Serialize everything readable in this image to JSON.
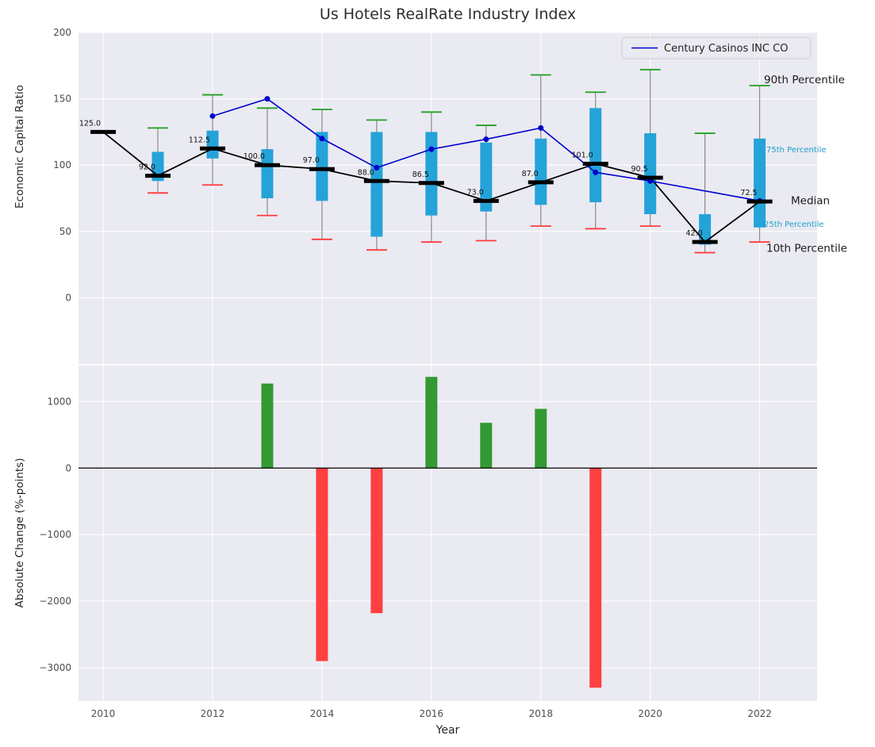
{
  "chart_data": {
    "type": [
      "boxplot",
      "line",
      "bar"
    ],
    "title": "Us Hotels RealRate Industry Index",
    "xlabel": "Year",
    "x_tick_years": [
      2010,
      2012,
      2014,
      2016,
      2018,
      2020,
      2022
    ],
    "x_range": [
      2009.55,
      2023.05
    ],
    "colors": {
      "axes_bg": "#eaeaf2",
      "grid": "#ffffff",
      "box": "#24a3d9",
      "whisker": "#8a8a8a",
      "cap_top": "#22a022",
      "cap_bottom": "#ff3b3b",
      "median": "#000000",
      "company_line": "#0000cd",
      "bar_positive": "#339933",
      "bar_negative": "#ff4040",
      "percentile_cyan": "#1d9ecb",
      "annotation_black": "#1a1a1a"
    },
    "top_panel": {
      "ylabel": "Economic Capital Ratio",
      "ylim": [
        -50,
        200
      ],
      "yticks": [
        0,
        50,
        100,
        150,
        200
      ],
      "grid": true,
      "legend_label": "Century Casinos INC CO",
      "legend_position": "upper right",
      "boxes": [
        {
          "year": 2010,
          "median": 125.0
        },
        {
          "year": 2011,
          "p10": 79,
          "p25": 88,
          "median": 92.0,
          "p75": 110,
          "p90": 128
        },
        {
          "year": 2012,
          "p10": 85,
          "p25": 105,
          "median": 112.5,
          "p75": 126,
          "p90": 153
        },
        {
          "year": 2013,
          "p10": 62,
          "p25": 75,
          "median": 100.0,
          "p75": 112,
          "p90": 143
        },
        {
          "year": 2014,
          "p10": 44,
          "p25": 73,
          "median": 97.0,
          "p75": 125,
          "p90": 142
        },
        {
          "year": 2015,
          "p10": 36,
          "p25": 46,
          "median": 88.0,
          "p75": 125,
          "p90": 134
        },
        {
          "year": 2016,
          "p10": 42,
          "p25": 62,
          "median": 86.5,
          "p75": 125,
          "p90": 140
        },
        {
          "year": 2017,
          "p10": 43,
          "p25": 65,
          "median": 73.0,
          "p75": 117,
          "p90": 130
        },
        {
          "year": 2018,
          "p10": 54,
          "p25": 70,
          "median": 87.0,
          "p75": 120,
          "p90": 168
        },
        {
          "year": 2019,
          "p10": 52,
          "p25": 72,
          "median": 101.0,
          "p75": 143,
          "p90": 155
        },
        {
          "year": 2020,
          "p10": 54,
          "p25": 63,
          "median": 90.5,
          "p75": 124,
          "p90": 172
        },
        {
          "year": 2021,
          "p10": 34,
          "p25": 40,
          "median": 42.0,
          "p75": 63,
          "p90": 124
        },
        {
          "year": 2022,
          "p10": 42,
          "p25": 53,
          "median": 72.5,
          "p75": 120,
          "p90": 160
        }
      ],
      "company": {
        "name": "Century Casinos INC CO",
        "points": [
          {
            "year": 2012,
            "value": 137.0
          },
          {
            "year": 2013,
            "value": 150.0
          },
          {
            "year": 2014,
            "value": 120.0
          },
          {
            "year": 2015,
            "value": 98.0
          },
          {
            "year": 2016,
            "value": 112.0
          },
          {
            "year": 2017,
            "value": 119.5
          },
          {
            "year": 2018,
            "value": 128.0
          },
          {
            "year": 2019,
            "value": 94.5
          },
          {
            "year": 2020,
            "value": 88.0
          },
          {
            "year": 2022,
            "value": 73.0
          }
        ]
      },
      "annotations": [
        {
          "id": "90th-percentile",
          "text": "90th Percentile",
          "value": 164,
          "x": 963,
          "size": 13.5,
          "color": "#1a1a1a"
        },
        {
          "id": "75th-percentile",
          "text": "75th Percentile",
          "value": 112,
          "x": 966,
          "size": 10,
          "color": "#1d9ecb"
        },
        {
          "id": "median",
          "text": "Median",
          "value": 73,
          "x": 997,
          "size": 13.5,
          "color": "#1a1a1a"
        },
        {
          "id": "25th-percentile",
          "text": "25th Percentile",
          "value": 56,
          "x": 963,
          "size": 10,
          "color": "#1d9ecb"
        },
        {
          "id": "10th-percentile",
          "text": "10th Percentile",
          "value": 37,
          "x": 966,
          "size": 13.5,
          "color": "#1a1a1a"
        }
      ]
    },
    "bottom_panel": {
      "ylabel": "Absolute Change (%-points)",
      "ylim": [
        -3500,
        1540
      ],
      "yticks": [
        1000,
        0,
        -1000,
        -2000,
        -3000
      ],
      "ytick_labels": [
        "1000",
        "0",
        "−1000",
        "−2000",
        "−3000"
      ],
      "grid": true,
      "bars": [
        {
          "year": 2013,
          "value": 1270
        },
        {
          "year": 2014,
          "value": -2900
        },
        {
          "year": 2015,
          "value": -2180
        },
        {
          "year": 2016,
          "value": 1370
        },
        {
          "year": 2017,
          "value": 680
        },
        {
          "year": 2018,
          "value": 890
        },
        {
          "year": 2019,
          "value": -3300
        }
      ]
    }
  }
}
